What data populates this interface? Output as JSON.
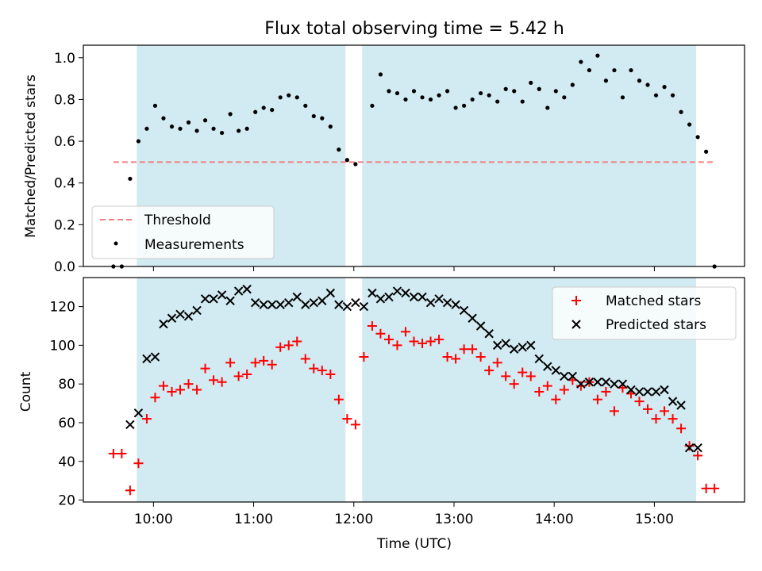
{
  "chart_data": [
    {
      "type": "scatter",
      "title": "Flux total observing time = 5.42 h",
      "ylabel": "Matched/Predicted stars",
      "ylim": [
        0,
        1.06
      ],
      "xlim_hours": [
        9.3,
        15.9
      ],
      "yticks": [
        "0.0",
        "0.2",
        "0.4",
        "0.6",
        "0.8",
        "1.0"
      ],
      "shaded_intervals": [
        [
          "09:50",
          "11:55"
        ],
        [
          "12:05",
          "15:25"
        ]
      ],
      "shade_color": "#add8e6",
      "threshold": {
        "name": "Threshold",
        "value": 0.5,
        "x_range": [
          "09:36",
          "15:36"
        ],
        "color": "#f08080"
      },
      "series": [
        {
          "name": "Measurements",
          "color": "#000000",
          "x": [
            "09:36",
            "09:41",
            "09:46",
            "09:51",
            "09:56",
            "10:01",
            "10:06",
            "10:11",
            "10:16",
            "10:21",
            "10:26",
            "10:31",
            "10:36",
            "10:41",
            "10:46",
            "10:51",
            "10:56",
            "11:01",
            "11:06",
            "11:11",
            "11:16",
            "11:21",
            "11:26",
            "11:31",
            "11:36",
            "11:41",
            "11:46",
            "11:51",
            "11:56",
            "12:01",
            "12:11",
            "12:16",
            "12:21",
            "12:26",
            "12:31",
            "12:36",
            "12:41",
            "12:46",
            "12:51",
            "12:56",
            "13:01",
            "13:06",
            "13:11",
            "13:16",
            "13:21",
            "13:26",
            "13:31",
            "13:36",
            "13:41",
            "13:46",
            "13:51",
            "13:56",
            "14:01",
            "14:06",
            "14:11",
            "14:16",
            "14:21",
            "14:26",
            "14:31",
            "14:36",
            "14:41",
            "14:46",
            "14:51",
            "14:56",
            "15:01",
            "15:06",
            "15:11",
            "15:16",
            "15:21",
            "15:26",
            "15:31",
            "15:36"
          ],
          "y": [
            0.0,
            0.0,
            0.42,
            0.6,
            0.66,
            0.77,
            0.71,
            0.67,
            0.66,
            0.69,
            0.65,
            0.7,
            0.66,
            0.64,
            0.73,
            0.65,
            0.66,
            0.74,
            0.76,
            0.75,
            0.81,
            0.82,
            0.81,
            0.77,
            0.72,
            0.71,
            0.67,
            0.56,
            0.51,
            0.49,
            0.77,
            0.92,
            0.84,
            0.83,
            0.8,
            0.84,
            0.81,
            0.8,
            0.82,
            0.84,
            0.76,
            0.77,
            0.8,
            0.83,
            0.82,
            0.79,
            0.85,
            0.84,
            0.79,
            0.88,
            0.85,
            0.76,
            0.84,
            0.81,
            0.87,
            0.98,
            0.94,
            1.01,
            0.89,
            0.94,
            0.81,
            0.94,
            0.89,
            0.87,
            0.82,
            0.86,
            0.82,
            0.74,
            0.68,
            0.62,
            0.55,
            0.0
          ]
        }
      ]
    },
    {
      "type": "scatter",
      "xlabel": "Time (UTC)",
      "ylabel": "Count",
      "ylim": [
        19,
        135
      ],
      "xlim_hours": [
        9.3,
        15.9
      ],
      "xticks": [
        "10:00",
        "11:00",
        "12:00",
        "13:00",
        "14:00",
        "15:00"
      ],
      "yticks": [
        "20",
        "40",
        "60",
        "80",
        "100",
        "120"
      ],
      "series": [
        {
          "name": "Matched stars",
          "color": "#ff0000",
          "x": [
            "09:36",
            "09:41",
            "09:46",
            "09:51",
            "09:56",
            "10:01",
            "10:06",
            "10:11",
            "10:16",
            "10:21",
            "10:26",
            "10:31",
            "10:36",
            "10:41",
            "10:46",
            "10:51",
            "10:56",
            "11:01",
            "11:06",
            "11:11",
            "11:16",
            "11:21",
            "11:26",
            "11:31",
            "11:36",
            "11:41",
            "11:46",
            "11:51",
            "11:56",
            "12:01",
            "12:06",
            "12:11",
            "12:16",
            "12:21",
            "12:26",
            "12:31",
            "12:36",
            "12:41",
            "12:46",
            "12:51",
            "12:56",
            "13:01",
            "13:06",
            "13:11",
            "13:16",
            "13:21",
            "13:26",
            "13:31",
            "13:36",
            "13:41",
            "13:46",
            "13:51",
            "13:56",
            "14:01",
            "14:06",
            "14:11",
            "14:16",
            "14:21",
            "14:26",
            "14:31",
            "14:36",
            "14:41",
            "14:46",
            "14:51",
            "14:56",
            "15:01",
            "15:06",
            "15:11",
            "15:16",
            "15:21",
            "15:26",
            "15:31",
            "15:36"
          ],
          "y": [
            44,
            44,
            25,
            39,
            62,
            73,
            79,
            76,
            77,
            80,
            77,
            88,
            82,
            81,
            91,
            84,
            85,
            91,
            92,
            90,
            99,
            100,
            102,
            93,
            88,
            87,
            85,
            72,
            62,
            59,
            94,
            110,
            106,
            103,
            100,
            107,
            102,
            101,
            102,
            103,
            94,
            93,
            98,
            98,
            94,
            87,
            91,
            84,
            80,
            86,
            84,
            76,
            79,
            72,
            77,
            82,
            79,
            81,
            72,
            76,
            66,
            78,
            75,
            71,
            67,
            62,
            66,
            62,
            57,
            48,
            43,
            26,
            26
          ]
        },
        {
          "name": "Predicted stars",
          "color": "#000000",
          "x": [
            "09:46",
            "09:51",
            "09:56",
            "10:01",
            "10:06",
            "10:11",
            "10:16",
            "10:21",
            "10:26",
            "10:31",
            "10:36",
            "10:41",
            "10:46",
            "10:51",
            "10:56",
            "11:01",
            "11:06",
            "11:11",
            "11:16",
            "11:21",
            "11:26",
            "11:31",
            "11:36",
            "11:41",
            "11:46",
            "11:51",
            "11:56",
            "12:01",
            "12:06",
            "12:11",
            "12:16",
            "12:21",
            "12:26",
            "12:31",
            "12:36",
            "12:41",
            "12:46",
            "12:51",
            "12:56",
            "13:01",
            "13:06",
            "13:11",
            "13:16",
            "13:21",
            "13:26",
            "13:31",
            "13:36",
            "13:41",
            "13:46",
            "13:51",
            "13:56",
            "14:01",
            "14:06",
            "14:11",
            "14:16",
            "14:21",
            "14:26",
            "14:31",
            "14:36",
            "14:41",
            "14:46",
            "14:51",
            "14:56",
            "15:01",
            "15:06",
            "15:11",
            "15:16",
            "15:21",
            "15:26"
          ],
          "y": [
            59,
            65,
            93,
            94,
            111,
            114,
            116,
            115,
            118,
            124,
            124,
            126,
            123,
            128,
            129,
            122,
            121,
            121,
            121,
            122,
            125,
            121,
            122,
            123,
            127,
            121,
            120,
            122,
            120,
            127,
            124,
            125,
            128,
            127,
            125,
            125,
            122,
            124,
            122,
            121,
            118,
            114,
            110,
            106,
            100,
            101,
            98,
            99,
            100,
            93,
            89,
            87,
            84,
            84,
            80,
            81,
            81,
            81,
            80,
            80,
            77,
            76,
            76,
            76,
            77,
            71,
            69,
            47,
            47
          ]
        }
      ]
    }
  ]
}
